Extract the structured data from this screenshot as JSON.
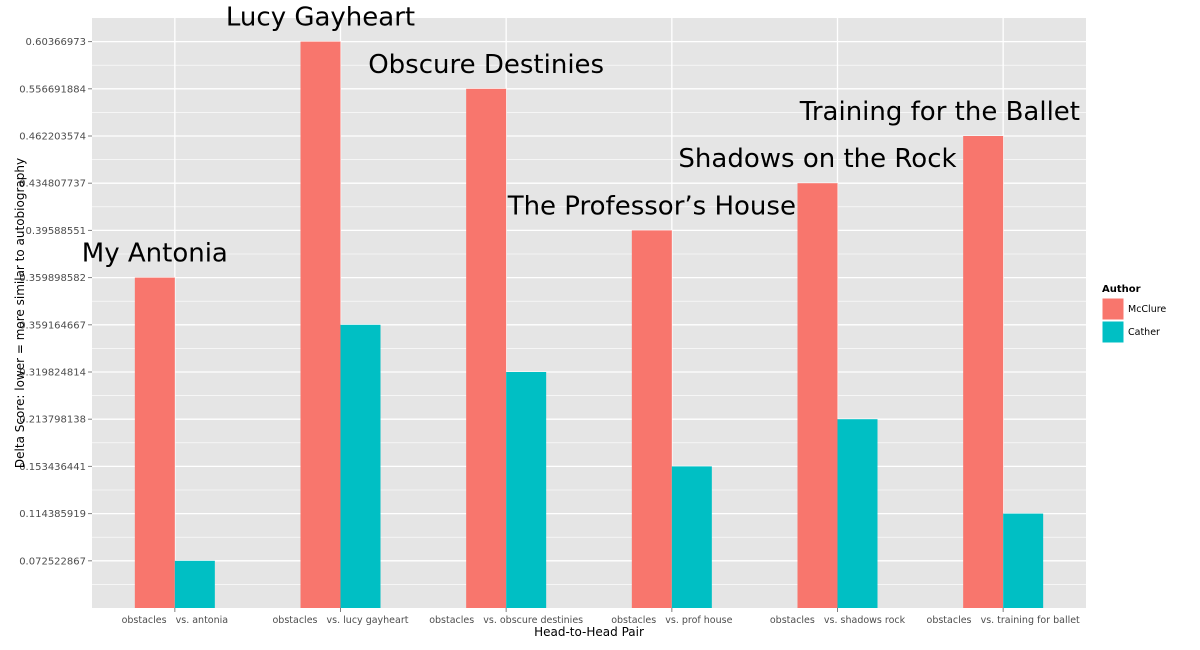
{
  "chart_data": {
    "type": "bar",
    "xlabel": "Head-to-Head Pair",
    "ylabel": "Delta Score: lower = more similar to autobiography",
    "categories": [
      "obstacles   vs. antonia",
      "obstacles   vs. lucy gayheart",
      "obstacles   vs. obscure destinies",
      "obstacles   vs. prof house",
      "obstacles   vs. shadows rock",
      "obstacles   vs. training for ballet"
    ],
    "y_tick_labels": [
      "0.072522867",
      "0.114385919",
      "0.153436441",
      "0.213798138",
      "0.319824814",
      "0.359164667",
      "0.359898582",
      "0.39588551",
      "0.434807737",
      "0.462203574",
      "0.556691884",
      "0.60366973"
    ],
    "y_tick_ranks": [
      1,
      2,
      3,
      4,
      5,
      6,
      7,
      8,
      9,
      10,
      11,
      12
    ],
    "ylim_ranks": [
      0,
      12.5
    ],
    "series": [
      {
        "name": "McClure",
        "color": "#F8766D",
        "values": [
          "0.359898582",
          "0.60366973",
          "0.556691884",
          "0.39588551",
          "0.434807737",
          "0.462203574"
        ],
        "ranks": [
          7,
          12,
          11,
          8,
          9,
          10
        ]
      },
      {
        "name": "Cather",
        "color": "#00BFC4",
        "values": [
          "0.072522867",
          "0.359164667",
          "0.319824814",
          "0.153436441",
          "0.213798138",
          "0.114385919"
        ],
        "ranks": [
          1,
          6,
          5,
          3,
          4,
          2
        ]
      }
    ],
    "annotations": [
      {
        "text": "My Antonia",
        "category_index": 0
      },
      {
        "text": "Lucy Gayheart",
        "category_index": 1
      },
      {
        "text": "Obscure Destinies",
        "category_index": 2
      },
      {
        "text": "The Professor’s House",
        "category_index": 3
      },
      {
        "text": "Shadows on the Rock",
        "category_index": 4
      },
      {
        "text": "Training for the Ballet",
        "category_index": 5
      }
    ],
    "legend": {
      "title": "Author",
      "position": "right"
    },
    "grid": true,
    "panel_color": "#E5E5E5",
    "grid_color": "#FFFFFF"
  }
}
